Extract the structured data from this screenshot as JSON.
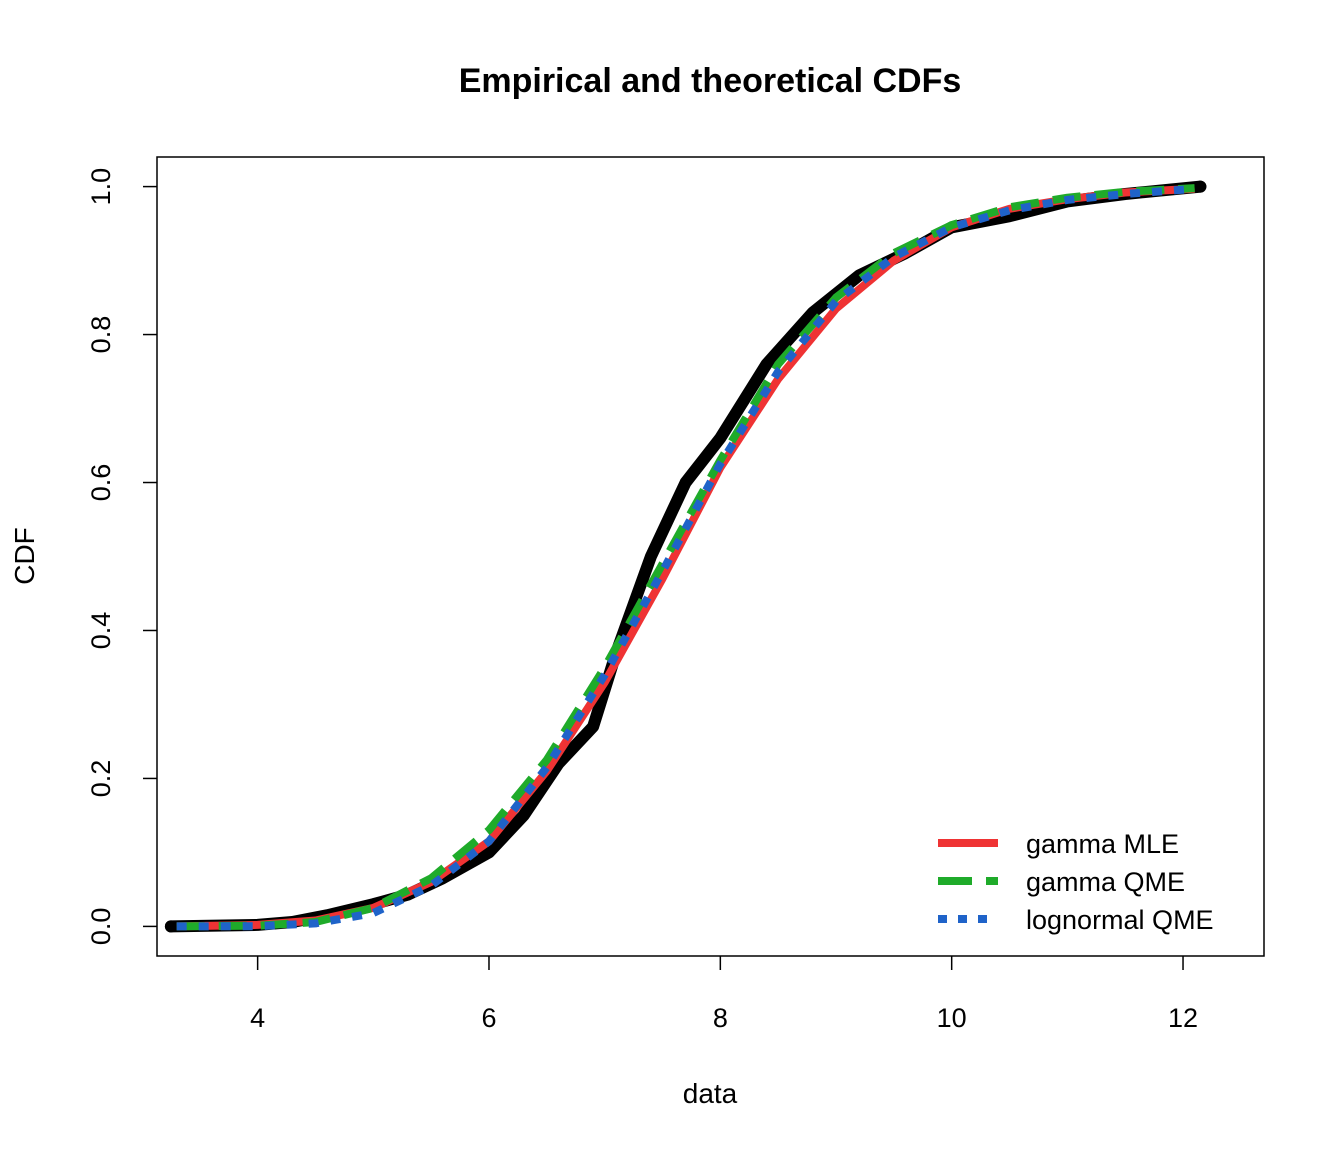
{
  "chart_data": {
    "type": "line",
    "title": "Empirical and theoretical CDFs",
    "xlabel": "data",
    "ylabel": "CDF",
    "xlim": [
      3.13,
      12.7
    ],
    "ylim": [
      -0.04,
      1.04
    ],
    "xticks": [
      4,
      6,
      8,
      10,
      12
    ],
    "yticks": [
      0.0,
      0.2,
      0.4,
      0.6,
      0.8,
      1.0
    ],
    "xtick_labels": [
      "4",
      "6",
      "8",
      "10",
      "12"
    ],
    "ytick_labels": [
      "0.0",
      "0.2",
      "0.4",
      "0.6",
      "0.8",
      "1.0"
    ],
    "grid": false,
    "legend_position": "bottom-right",
    "empirical": {
      "color": "#000000",
      "x": [
        3.25,
        4.0,
        4.3,
        4.6,
        5.0,
        5.3,
        5.6,
        6.0,
        6.3,
        6.6,
        6.9,
        7.1,
        7.4,
        7.7,
        8.0,
        8.4,
        8.8,
        9.2,
        9.6,
        10.0,
        10.5,
        11.0,
        11.5,
        12.15
      ],
      "y": [
        0.0,
        0.002,
        0.006,
        0.015,
        0.03,
        0.043,
        0.065,
        0.1,
        0.15,
        0.22,
        0.27,
        0.37,
        0.5,
        0.6,
        0.66,
        0.76,
        0.83,
        0.88,
        0.91,
        0.945,
        0.96,
        0.98,
        0.99,
        1.0
      ]
    },
    "series": [
      {
        "name": "gamma MLE",
        "color": "#ef3334",
        "style": "solid",
        "x": [
          3.3,
          4.0,
          4.5,
          5.0,
          5.5,
          6.0,
          6.5,
          7.0,
          7.5,
          8.0,
          8.5,
          9.0,
          9.5,
          10.0,
          10.5,
          11.0,
          11.5,
          12.1
        ],
        "y": [
          0.0,
          0.002,
          0.008,
          0.025,
          0.06,
          0.115,
          0.21,
          0.33,
          0.47,
          0.62,
          0.74,
          0.835,
          0.9,
          0.945,
          0.97,
          0.983,
          0.992,
          0.997
        ]
      },
      {
        "name": "gamma QME",
        "color": "#1fab2a",
        "style": "dashed",
        "x": [
          3.3,
          4.0,
          4.5,
          5.0,
          5.5,
          6.0,
          6.5,
          7.0,
          7.5,
          8.0,
          8.5,
          9.0,
          9.5,
          10.0,
          10.5,
          11.0,
          11.5,
          12.1
        ],
        "y": [
          0.0,
          0.001,
          0.006,
          0.025,
          0.065,
          0.13,
          0.225,
          0.35,
          0.49,
          0.63,
          0.76,
          0.85,
          0.91,
          0.948,
          0.972,
          0.985,
          0.993,
          0.998
        ]
      },
      {
        "name": "lognormal QME",
        "color": "#1f63c9",
        "style": "dotted",
        "x": [
          3.3,
          4.0,
          4.5,
          5.0,
          5.5,
          6.0,
          6.5,
          7.0,
          7.5,
          8.0,
          8.5,
          9.0,
          9.5,
          10.0,
          10.5,
          11.0,
          11.5,
          12.1
        ],
        "y": [
          0.0,
          0.0003,
          0.004,
          0.018,
          0.055,
          0.115,
          0.215,
          0.34,
          0.48,
          0.625,
          0.75,
          0.845,
          0.905,
          0.945,
          0.968,
          0.982,
          0.99,
          0.997
        ]
      }
    ]
  }
}
